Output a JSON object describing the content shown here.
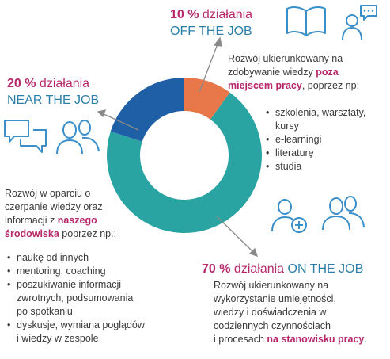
{
  "chart_data": {
    "type": "pie",
    "style": "donut",
    "categories": [
      "OFF THE JOB",
      "ON THE JOB",
      "NEAR THE JOB"
    ],
    "values": [
      10,
      70,
      20
    ],
    "colors": [
      "#e8774a",
      "#2aa3a3",
      "#1f5fa6"
    ],
    "start_angle_deg": 0,
    "direction": "clockwise"
  },
  "off": {
    "pct": "10 %",
    "word": "działania",
    "title": "OFF THE JOB",
    "desc_a": "Rozwój ukierunkowany na",
    "desc_b": "zdobywanie wiedzy",
    "desc_bold1": "poza",
    "desc_bold2": "miejscem pracy",
    "desc_c": ", poprzez np:",
    "items": [
      "szkolenia, warsztaty,",
      "kursy",
      "e-learningi",
      "literaturę",
      "studia"
    ]
  },
  "near": {
    "pct": "20 %",
    "word": "działania",
    "title": "NEAR THE JOB",
    "desc_a": "Rozwój w oparciu o",
    "desc_b": "czerpanie wiedzy oraz",
    "desc_c": "informacji z",
    "desc_bold1": "naszego",
    "desc_bold2": "środowiska",
    "desc_d": "poprzez np.:",
    "items": [
      "naukę od innych",
      "mentoring, coaching",
      "poszukiwanie informacji",
      "zwrotnych, podsumowania",
      "po spotkaniu",
      "dyskusje, wymiana poglądów",
      "i wiedzy w zespole"
    ]
  },
  "on": {
    "pct": "70 %",
    "word": "działania",
    "title": "ON THE JOB",
    "desc_1": "Rozwój ukierunkowany na",
    "desc_2": "wykorzystanie umiejętności,",
    "desc_3": "wiedzy i doświadczenia w",
    "desc_4": "codziennych czynnościach",
    "desc_5a": "i procesach",
    "desc_5b": "na stanowisku pracy",
    "desc_5c": "."
  },
  "colors": {
    "accent": "#b5286b",
    "title_blue": "#2c7fa8",
    "icon_blue": "#3b8fc8",
    "arrow": "#8a8a8a"
  },
  "icons": [
    "book-icon",
    "person-speech-icon",
    "chat-bubbles-icon",
    "two-people-icon",
    "person-add-icon",
    "group-icon"
  ]
}
